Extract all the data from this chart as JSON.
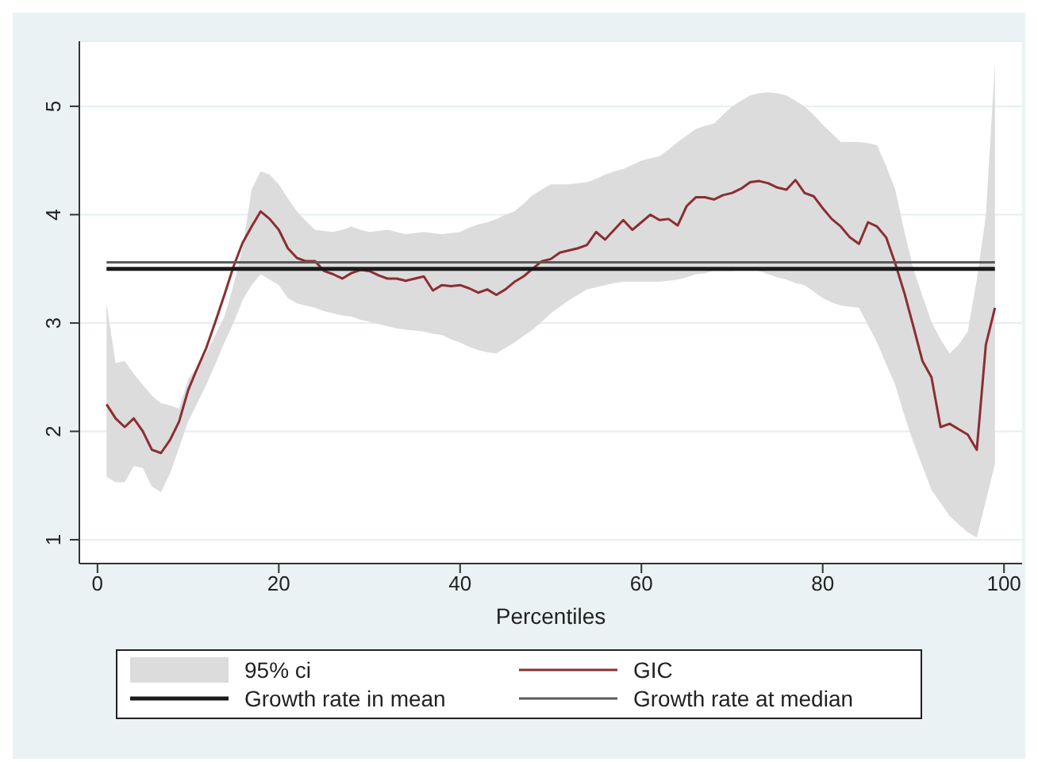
{
  "chart_data": {
    "type": "line",
    "xlabel": "Percentiles",
    "x": [
      1,
      2,
      3,
      4,
      5,
      6,
      7,
      8,
      9,
      10,
      11,
      12,
      13,
      14,
      15,
      16,
      17,
      18,
      19,
      20,
      21,
      22,
      23,
      24,
      25,
      26,
      27,
      28,
      29,
      30,
      31,
      32,
      33,
      34,
      35,
      36,
      37,
      38,
      39,
      40,
      41,
      42,
      43,
      44,
      45,
      46,
      47,
      48,
      49,
      50,
      51,
      52,
      53,
      54,
      55,
      56,
      57,
      58,
      59,
      60,
      61,
      62,
      63,
      64,
      65,
      66,
      67,
      68,
      69,
      70,
      71,
      72,
      73,
      74,
      75,
      76,
      77,
      78,
      79,
      80,
      81,
      82,
      83,
      84,
      85,
      86,
      87,
      88,
      89,
      90,
      91,
      92,
      93,
      94,
      95,
      96,
      97,
      98,
      99
    ],
    "series": [
      {
        "name": "GIC",
        "color": "#8b2e32",
        "values": [
          2.25,
          2.12,
          2.04,
          2.12,
          2.0,
          1.83,
          1.8,
          1.92,
          2.09,
          2.38,
          2.58,
          2.77,
          3.01,
          3.26,
          3.52,
          3.74,
          3.89,
          4.03,
          3.96,
          3.86,
          3.69,
          3.6,
          3.57,
          3.57,
          3.48,
          3.45,
          3.41,
          3.46,
          3.49,
          3.48,
          3.44,
          3.41,
          3.41,
          3.39,
          3.41,
          3.43,
          3.3,
          3.35,
          3.34,
          3.35,
          3.32,
          3.28,
          3.31,
          3.26,
          3.31,
          3.38,
          3.43,
          3.5,
          3.57,
          3.59,
          3.65,
          3.67,
          3.69,
          3.72,
          3.84,
          3.77,
          3.86,
          3.95,
          3.86,
          3.93,
          4.0,
          3.95,
          3.96,
          3.9,
          4.08,
          4.16,
          4.16,
          4.14,
          4.18,
          4.2,
          4.24,
          4.3,
          4.31,
          4.29,
          4.25,
          4.23,
          4.32,
          4.2,
          4.17,
          4.06,
          3.96,
          3.89,
          3.79,
          3.73,
          3.93,
          3.89,
          3.79,
          3.55,
          3.28,
          2.97,
          2.65,
          2.5,
          2.04,
          2.07,
          2.02,
          1.97,
          1.83,
          2.8,
          3.14
        ],
        "lower": [
          1.58,
          1.53,
          1.53,
          1.68,
          1.66,
          1.49,
          1.44,
          1.61,
          1.85,
          2.09,
          2.26,
          2.43,
          2.62,
          2.82,
          3.0,
          3.21,
          3.35,
          3.45,
          3.4,
          3.35,
          3.23,
          3.18,
          3.16,
          3.14,
          3.11,
          3.09,
          3.07,
          3.06,
          3.03,
          3.01,
          2.99,
          2.97,
          2.95,
          2.94,
          2.93,
          2.92,
          2.9,
          2.89,
          2.85,
          2.82,
          2.78,
          2.75,
          2.73,
          2.72,
          2.77,
          2.82,
          2.88,
          2.94,
          3.01,
          3.09,
          3.15,
          3.21,
          3.26,
          3.31,
          3.33,
          3.35,
          3.37,
          3.38,
          3.38,
          3.38,
          3.38,
          3.38,
          3.39,
          3.4,
          3.42,
          3.45,
          3.46,
          3.48,
          3.48,
          3.48,
          3.49,
          3.5,
          3.48,
          3.45,
          3.42,
          3.4,
          3.37,
          3.35,
          3.29,
          3.23,
          3.19,
          3.16,
          3.15,
          3.14,
          2.98,
          2.82,
          2.62,
          2.43,
          2.15,
          1.9,
          1.68,
          1.46,
          1.34,
          1.22,
          1.14,
          1.07,
          1.02,
          1.36,
          1.7
        ],
        "upper": [
          3.18,
          2.63,
          2.65,
          2.53,
          2.43,
          2.33,
          2.26,
          2.24,
          2.21,
          2.48,
          2.6,
          2.72,
          2.89,
          3.06,
          3.35,
          3.69,
          4.23,
          4.4,
          4.37,
          4.28,
          4.15,
          4.03,
          3.94,
          3.86,
          3.85,
          3.84,
          3.86,
          3.89,
          3.86,
          3.84,
          3.85,
          3.86,
          3.84,
          3.82,
          3.83,
          3.84,
          3.83,
          3.82,
          3.83,
          3.84,
          3.88,
          3.91,
          3.93,
          3.96,
          4.0,
          4.03,
          4.1,
          4.18,
          4.23,
          4.28,
          4.28,
          4.28,
          4.29,
          4.3,
          4.33,
          4.37,
          4.4,
          4.42,
          4.46,
          4.5,
          4.52,
          4.54,
          4.6,
          4.67,
          4.73,
          4.79,
          4.82,
          4.84,
          4.92,
          5.0,
          5.05,
          5.1,
          5.12,
          5.13,
          5.12,
          5.1,
          5.05,
          5.0,
          4.92,
          4.83,
          4.75,
          4.67,
          4.67,
          4.67,
          4.66,
          4.64,
          4.45,
          4.23,
          3.85,
          3.5,
          3.25,
          3.01,
          2.85,
          2.72,
          2.8,
          2.92,
          3.4,
          3.99,
          5.4
        ]
      }
    ],
    "annotations": [
      "95% ci"
    ],
    "ref_lines": [
      {
        "axis": "y",
        "value": 3.5,
        "label": "Growth rate in mean",
        "color": "#1a1a1a"
      },
      {
        "axis": "y",
        "value": 3.56,
        "label": "Growth rate at median",
        "color": "#5a5a5a"
      }
    ],
    "xlim": [
      -2,
      102
    ],
    "xticks": [
      0,
      20,
      40,
      60,
      80,
      100
    ],
    "ylim": [
      0.78,
      5.6
    ],
    "yticks": [
      1,
      2,
      3,
      4,
      5
    ],
    "grid": "y",
    "legend": "bottom",
    "line_style": "solid"
  }
}
